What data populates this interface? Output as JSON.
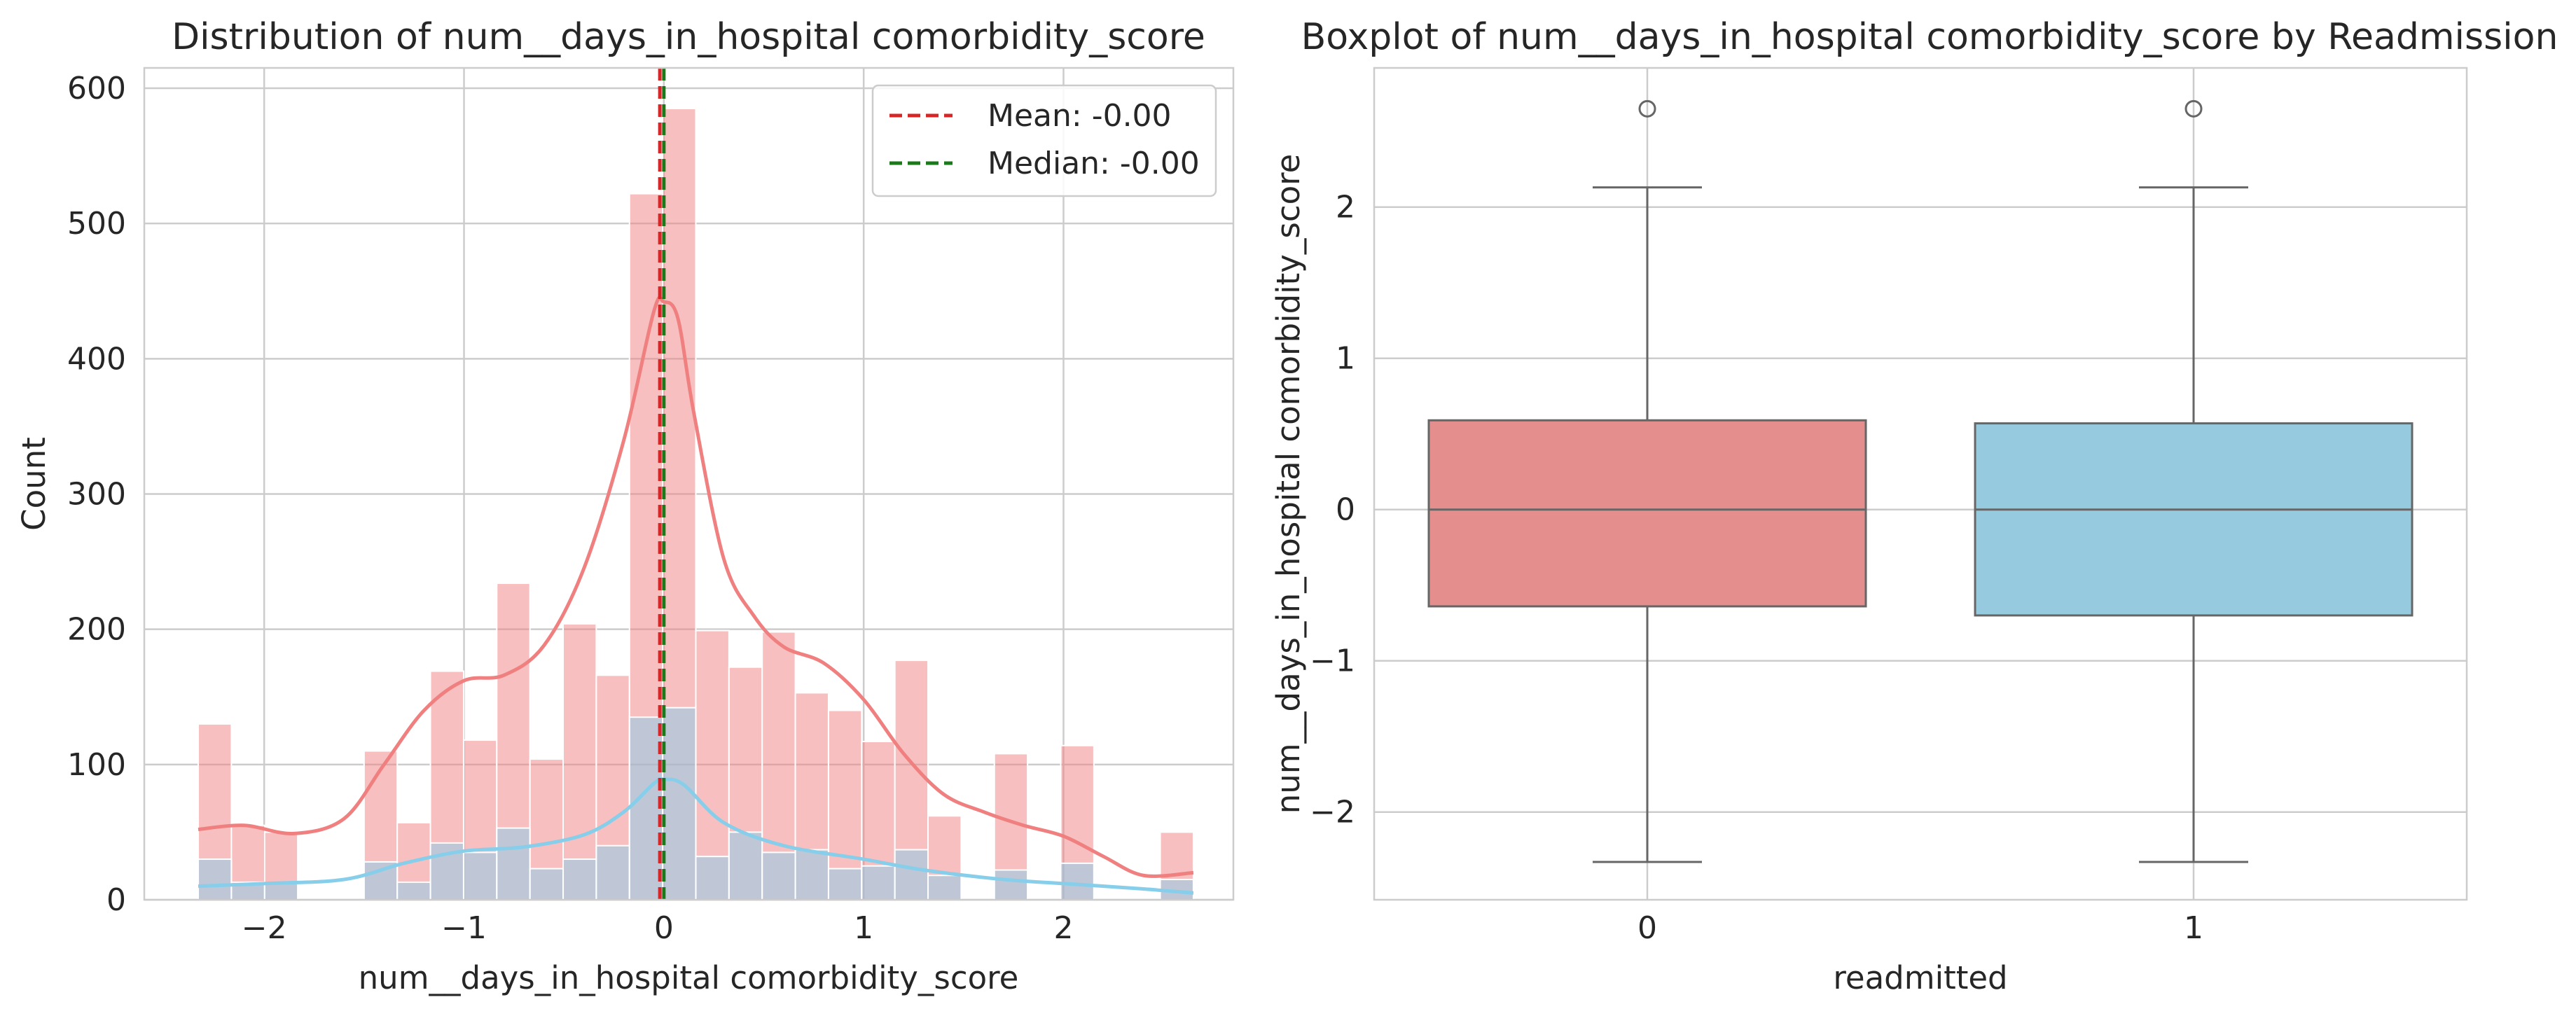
{
  "chart_data": [
    {
      "type": "histogram",
      "title": "Distribution of num__days_in_hospital comorbidity_score",
      "xlabel": "num__days_in_hospital comorbidity_score",
      "ylabel": "Count",
      "xlim": [
        -2.6,
        2.85
      ],
      "ylim": [
        0,
        615
      ],
      "xticks": [
        -2,
        -1,
        0,
        1,
        2
      ],
      "xtick_labels": [
        "−2",
        "−1",
        "0",
        "1",
        "2"
      ],
      "yticks": [
        0,
        100,
        200,
        300,
        400,
        500,
        600
      ],
      "ytick_labels": [
        "0",
        "100",
        "200",
        "300",
        "400",
        "500",
        "600"
      ],
      "grid": true,
      "bin_edges": [
        -2.33,
        -2.164,
        -1.998,
        -1.832,
        -1.666,
        -1.5,
        -1.334,
        -1.168,
        -1.002,
        -0.836,
        -0.67,
        -0.504,
        -0.338,
        -0.172,
        -0.006,
        0.16,
        0.326,
        0.492,
        0.658,
        0.824,
        0.99,
        1.156,
        1.322,
        1.488,
        1.654,
        1.82,
        1.986,
        2.152,
        2.318,
        2.484,
        2.65
      ],
      "series": [
        {
          "color": "#f08080",
          "values": [
            130,
            55,
            50,
            0,
            0,
            110,
            57,
            169,
            118,
            234,
            104,
            204,
            166,
            522,
            585,
            199,
            172,
            198,
            153,
            140,
            117,
            177,
            62,
            0,
            108,
            0,
            114,
            0,
            0,
            50
          ],
          "kde": [
            [
              -2.33,
              52
            ],
            [
              -2.1,
              55
            ],
            [
              -1.85,
              49
            ],
            [
              -1.6,
              60
            ],
            [
              -1.4,
              100
            ],
            [
              -1.2,
              140
            ],
            [
              -1.0,
              162
            ],
            [
              -0.8,
              166
            ],
            [
              -0.6,
              188
            ],
            [
              -0.4,
              245
            ],
            [
              -0.2,
              340
            ],
            [
              -0.05,
              435
            ],
            [
              0.0,
              442
            ],
            [
              0.07,
              430
            ],
            [
              0.15,
              360
            ],
            [
              0.3,
              252
            ],
            [
              0.45,
              210
            ],
            [
              0.6,
              187
            ],
            [
              0.8,
              175
            ],
            [
              1.0,
              148
            ],
            [
              1.2,
              108
            ],
            [
              1.4,
              78
            ],
            [
              1.6,
              65
            ],
            [
              1.8,
              55
            ],
            [
              2.0,
              47
            ],
            [
              2.2,
              32
            ],
            [
              2.4,
              18
            ],
            [
              2.65,
              20
            ]
          ]
        },
        {
          "color": "#87ceeb",
          "values": [
            30,
            13,
            12,
            0,
            0,
            28,
            13,
            42,
            35,
            53,
            23,
            30,
            40,
            135,
            142,
            32,
            50,
            35,
            37,
            23,
            25,
            37,
            18,
            0,
            22,
            0,
            27,
            0,
            0,
            15
          ],
          "kde": [
            [
              -2.33,
              10
            ],
            [
              -2.0,
              12
            ],
            [
              -1.6,
              15
            ],
            [
              -1.3,
              27
            ],
            [
              -1.0,
              36
            ],
            [
              -0.7,
              39
            ],
            [
              -0.4,
              48
            ],
            [
              -0.2,
              65
            ],
            [
              -0.05,
              86
            ],
            [
              0.0,
              89
            ],
            [
              0.1,
              85
            ],
            [
              0.3,
              57
            ],
            [
              0.6,
              40
            ],
            [
              1.0,
              30
            ],
            [
              1.3,
              22
            ],
            [
              1.7,
              15
            ],
            [
              2.0,
              12
            ],
            [
              2.4,
              8
            ],
            [
              2.65,
              5
            ]
          ]
        }
      ],
      "reference_lines": [
        {
          "value": -0.02,
          "color": "#d62728"
        },
        {
          "value": 0.0,
          "color": "#1a7a1a"
        }
      ],
      "legend": {
        "position": "top-right",
        "entries": [
          {
            "label": "Mean: -0.00",
            "color": "#d62728"
          },
          {
            "label": "Median: -0.00",
            "color": "#1a7a1a"
          }
        ]
      }
    },
    {
      "type": "boxplot",
      "title": "Boxplot of num__days_in_hospital comorbidity_score by Readmission",
      "xlabel": "readmitted",
      "ylabel": "num__days_in_hospital comorbidity_score",
      "categories": [
        "0",
        "1"
      ],
      "ylim": [
        -2.58,
        2.92
      ],
      "yticks": [
        -2,
        -1,
        0,
        1,
        2
      ],
      "ytick_labels": [
        "−2",
        "−1",
        "0",
        "1",
        "2"
      ],
      "grid": true,
      "boxes": [
        {
          "category": "0",
          "min": -2.33,
          "q1": -0.64,
          "median": 0.0,
          "q3": 0.59,
          "max": 2.13,
          "outliers": [
            2.65
          ],
          "color": "#e48e8e"
        },
        {
          "category": "1",
          "min": -2.33,
          "q1": -0.7,
          "median": 0.0,
          "q3": 0.57,
          "max": 2.13,
          "outliers": [
            2.65
          ],
          "color": "#95cadf"
        }
      ]
    }
  ]
}
